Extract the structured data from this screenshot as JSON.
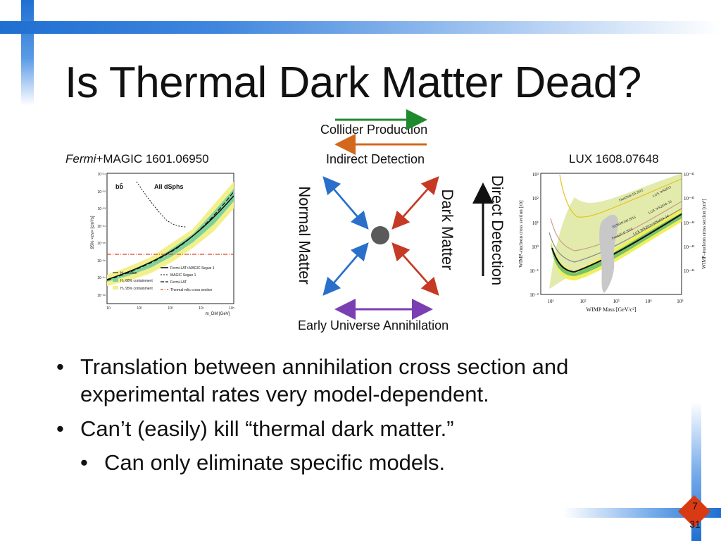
{
  "slide": {
    "title": "Is Thermal Dark Matter Dead?",
    "left_plot": {
      "caption_italic": "Fermi",
      "caption_rest": "+MAGIC 1601.06950",
      "panel_title": "All dSphs",
      "channel": "bb̄",
      "ylabel": "95% <σv> [cm³/s]",
      "xlabel": "m_DM [GeV]",
      "yticks": [
        "10⁻²¹",
        "10⁻²²",
        "10⁻²³",
        "10⁻²⁴",
        "10⁻²⁵",
        "10⁻²⁶",
        "10⁻²⁷",
        "10⁻²⁸"
      ],
      "xticks": [
        "10",
        "10²",
        "10³",
        "10⁴",
        "10⁵"
      ],
      "legend_left": [
        "H₀ median",
        "H₀ 68% containment",
        "H₀ 95% containment"
      ],
      "legend_right": [
        "Fermi-LAT+MAGIC Segue 1",
        "MAGIC Segue 1",
        "Fermi-LAT",
        "Thermal relic cross section"
      ]
    },
    "diagram": {
      "collider": "Collider Production",
      "indirect": "Indirect Detection",
      "early": "Early Universe Annihilation",
      "normal": "Normal Matter",
      "dark": "Dark Matter",
      "direct": "Direct Detection",
      "colors": {
        "collider": "#1e8a2e",
        "indirect": "#d3681c",
        "early": "#7b3fb3",
        "blue": "#2a6fc9",
        "red": "#c63a25"
      }
    },
    "right_plot": {
      "caption": "LUX 1608.07648",
      "xlabel": "WIMP Mass [GeV/c²]",
      "ylabel_left": "WIMP–nucleon cross section [zb]",
      "ylabel_right": "WIMP–nucleon cross section [cm²]",
      "yticks_left": [
        "10³",
        "10²",
        "10¹",
        "10⁰",
        "10⁻¹",
        "10⁻²"
      ],
      "yticks_right": [
        "10⁻⁴²",
        "10⁻⁴³",
        "10⁻⁴⁴",
        "10⁻⁴⁵",
        "10⁻⁴⁶"
      ],
      "xticks": [
        "10¹",
        "10²",
        "10³",
        "10⁴",
        "10⁵"
      ],
      "curve_labels": [
        "DarkSide-50 2015",
        "XENON100 2016",
        "PandaX-II 2016",
        "LUX WS2013",
        "LUX WS2014–16",
        "LUX WS2013+WS2014–16"
      ]
    },
    "bullets": [
      {
        "text": "Translation between annihilation cross section and experimental rates very model-dependent.",
        "level": 0
      },
      {
        "text": "Can’t (easily) kill “thermal dark matter.”",
        "level": 0
      },
      {
        "text": "Can only eliminate specific models.",
        "level": 1
      }
    ],
    "page": {
      "current": "7",
      "total": "31"
    }
  }
}
